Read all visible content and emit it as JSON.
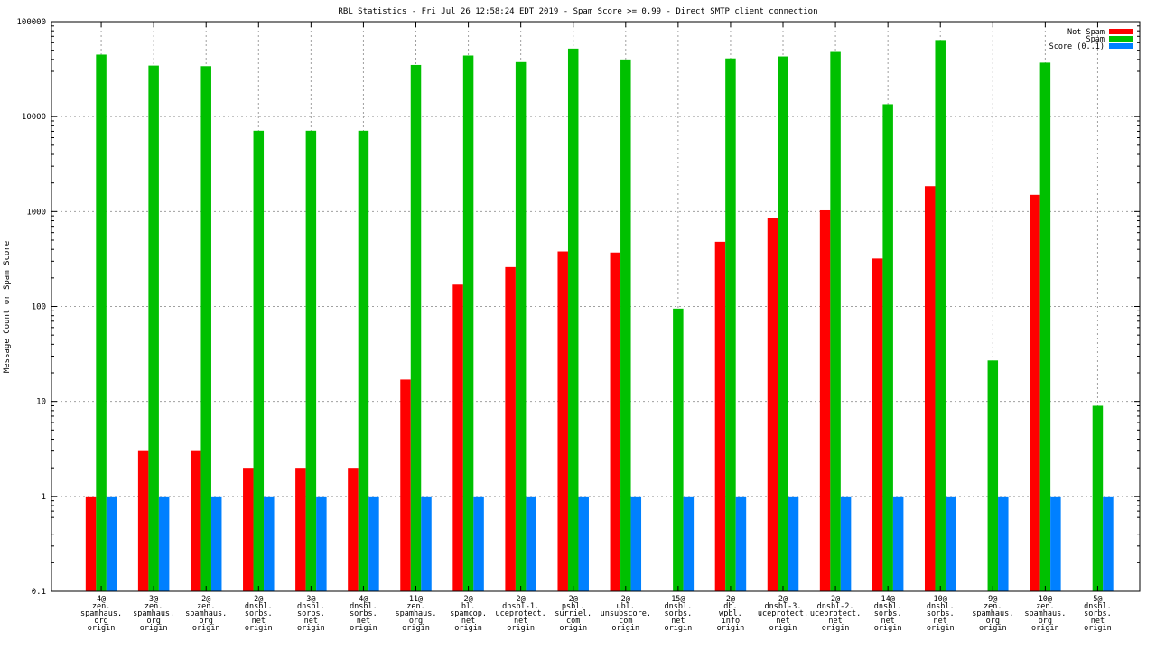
{
  "chart_data": {
    "type": "bar",
    "title": "RBL Statistics - Fri Jul 26 12:58:24 EDT 2019 - Spam Score >= 0.99 - Direct SMTP client connection",
    "xlabel": "",
    "ylabel": "Message Count or Spam Score",
    "yscale": "log",
    "ylim": [
      0.1,
      100000
    ],
    "y_ticks": [
      "0.1",
      "1",
      "10",
      "100",
      "1000",
      "10000",
      "100000"
    ],
    "grid": true,
    "legend_position": "top-right",
    "categories": [
      [
        "4@",
        "zen.",
        "spamhaus.",
        "org",
        "origin"
      ],
      [
        "3@",
        "zen.",
        "spamhaus.",
        "org",
        "origin"
      ],
      [
        "2@",
        "zen.",
        "spamhaus.",
        "org",
        "origin"
      ],
      [
        "2@",
        "dnsbl.",
        "sorbs.",
        "net",
        "origin"
      ],
      [
        "3@",
        "dnsbl.",
        "sorbs.",
        "net",
        "origin"
      ],
      [
        "4@",
        "dnsbl.",
        "sorbs.",
        "net",
        "origin"
      ],
      [
        "11@",
        "zen.",
        "spamhaus.",
        "org",
        "origin"
      ],
      [
        "2@",
        "bl.",
        "spamcop.",
        "net",
        "origin"
      ],
      [
        "2@",
        "dnsbl-1.",
        "uceprotect.",
        "net",
        "origin"
      ],
      [
        "2@",
        "psbl.",
        "surriel.",
        "com",
        "origin"
      ],
      [
        "2@",
        "ubl.",
        "unsubscore.",
        "com",
        "origin"
      ],
      [
        "15@",
        "dnsbl.",
        "sorbs.",
        "net",
        "origin"
      ],
      [
        "2@",
        "db.",
        "wpbl.",
        "info",
        "origin"
      ],
      [
        "2@",
        "dnsbl-3.",
        "uceprotect.",
        "net",
        "origin"
      ],
      [
        "2@",
        "dnsbl-2.",
        "uceprotect.",
        "net",
        "origin"
      ],
      [
        "14@",
        "dnsbl.",
        "sorbs.",
        "net",
        "origin"
      ],
      [
        "10@",
        "dnsbl.",
        "sorbs.",
        "net",
        "origin"
      ],
      [
        "9@",
        "zen.",
        "spamhaus.",
        "org",
        "origin"
      ],
      [
        "10@",
        "zen.",
        "spamhaus.",
        "org",
        "origin"
      ],
      [
        "5@",
        "dnsbl.",
        "sorbs.",
        "net",
        "origin"
      ]
    ],
    "series": [
      {
        "name": "Not Spam",
        "color": "#ff0000",
        "values": [
          1,
          3,
          3,
          2,
          2,
          2,
          17,
          170,
          260,
          380,
          370,
          0,
          480,
          850,
          1030,
          320,
          1850,
          0,
          1500,
          0
        ]
      },
      {
        "name": "Spam",
        "color": "#00c000",
        "values": [
          45000,
          34500,
          34000,
          7100,
          7100,
          7100,
          35000,
          44000,
          37500,
          52000,
          40000,
          95,
          41000,
          43000,
          48000,
          13500,
          64000,
          27,
          37000,
          9
        ]
      },
      {
        "name": "Score (0..1)",
        "color": "#0080ff",
        "values": [
          1,
          1,
          1,
          1,
          1,
          1,
          1,
          1,
          1,
          1,
          1,
          1,
          1,
          1,
          1,
          1,
          1,
          1,
          1,
          1
        ]
      }
    ]
  }
}
